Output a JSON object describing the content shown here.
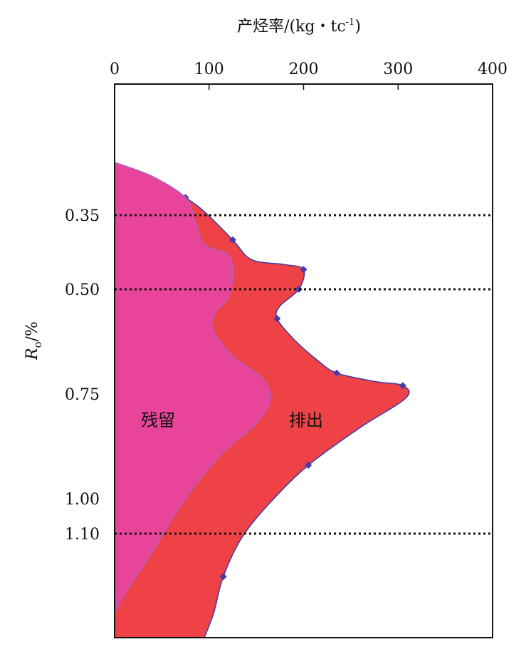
{
  "chart_data": {
    "type": "area",
    "x_axis": {
      "label": "产烃率/(kg・tc",
      "label_sup": "-1",
      "label_close": ")",
      "position": "top",
      "range": [
        0,
        400
      ],
      "ticks": [
        "0",
        "100",
        "200",
        "300",
        "400"
      ]
    },
    "y_axis": {
      "label_main": "R",
      "label_sub": "o",
      "label_unit": "/%",
      "ticks": [
        "0.35",
        "0.50",
        "0.75",
        "1.00",
        "1.10"
      ],
      "tick_values": [
        0.35,
        0.5,
        0.75,
        1.0,
        1.1
      ]
    },
    "reference_lines": [
      0.35,
      0.5,
      1.1
    ],
    "series": [
      {
        "name": "残留",
        "color": "#e8449a",
        "boundary": [
          [
            0,
            0.2
          ],
          [
            40,
            0.24
          ],
          [
            75,
            0.3
          ],
          [
            85,
            0.36
          ],
          [
            95,
            0.41
          ],
          [
            120,
            0.43
          ],
          [
            125,
            0.47
          ],
          [
            120,
            0.52
          ],
          [
            105,
            0.56
          ],
          [
            105,
            0.6
          ],
          [
            125,
            0.66
          ],
          [
            155,
            0.71
          ],
          [
            165,
            0.76
          ],
          [
            150,
            0.82
          ],
          [
            110,
            0.9
          ],
          [
            70,
            1.02
          ],
          [
            40,
            1.15
          ],
          [
            15,
            1.25
          ],
          [
            0,
            1.32
          ]
        ]
      },
      {
        "name": "排出",
        "color": "#ef4246",
        "boundary": [
          [
            0,
            0.2
          ],
          [
            40,
            0.24
          ],
          [
            75,
            0.3
          ],
          [
            95,
            0.34
          ],
          [
            125,
            0.4
          ],
          [
            145,
            0.44
          ],
          [
            180,
            0.45
          ],
          [
            200,
            0.46
          ],
          [
            195,
            0.5
          ],
          [
            175,
            0.54
          ],
          [
            172,
            0.57
          ],
          [
            190,
            0.62
          ],
          [
            215,
            0.67
          ],
          [
            235,
            0.7
          ],
          [
            275,
            0.72
          ],
          [
            305,
            0.73
          ],
          [
            308,
            0.76
          ],
          [
            260,
            0.83
          ],
          [
            205,
            0.92
          ],
          [
            165,
            1.01
          ],
          [
            135,
            1.11
          ],
          [
            115,
            1.22
          ],
          [
            105,
            1.32
          ],
          [
            95,
            1.39
          ]
        ]
      }
    ]
  }
}
